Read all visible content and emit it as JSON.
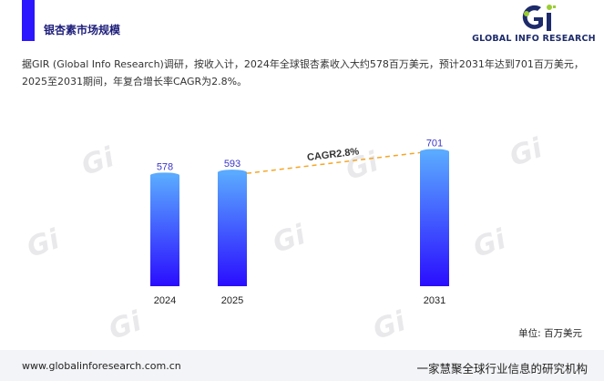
{
  "header": {
    "section_title": "银杏素市场规模",
    "logo_text": "GLOBAL INFO RESEARCH",
    "logo_mark": "Gi"
  },
  "intro": "据GIR (Global Info Research)调研，按收入计，2024年全球银杏素收入大约578百万美元，预计2031年达到701百万美元，2025至2031期间，年复合增长率CAGR为2.8%。",
  "chart_data": {
    "type": "bar",
    "categories": [
      "2024",
      "2025",
      "2031"
    ],
    "values": [
      578,
      593,
      701
    ],
    "annotation": "CAGR2.8%",
    "unit": "单位: 百万美元",
    "title": "",
    "xlabel": "",
    "ylabel": "",
    "colors": {
      "bar_top": "#5aaaff",
      "bar_bottom": "#2a0dff",
      "trend_line": "#f5a623",
      "value_label": "#3a35c8"
    }
  },
  "footer": {
    "url": "www.globalinforesearch.com.cn",
    "slogan": "一家慧聚全球行业信息的研究机构"
  },
  "colors": {
    "accent": "#2b16ff",
    "logo_green": "#9acd32",
    "logo_navy": "#1d2b6b"
  }
}
